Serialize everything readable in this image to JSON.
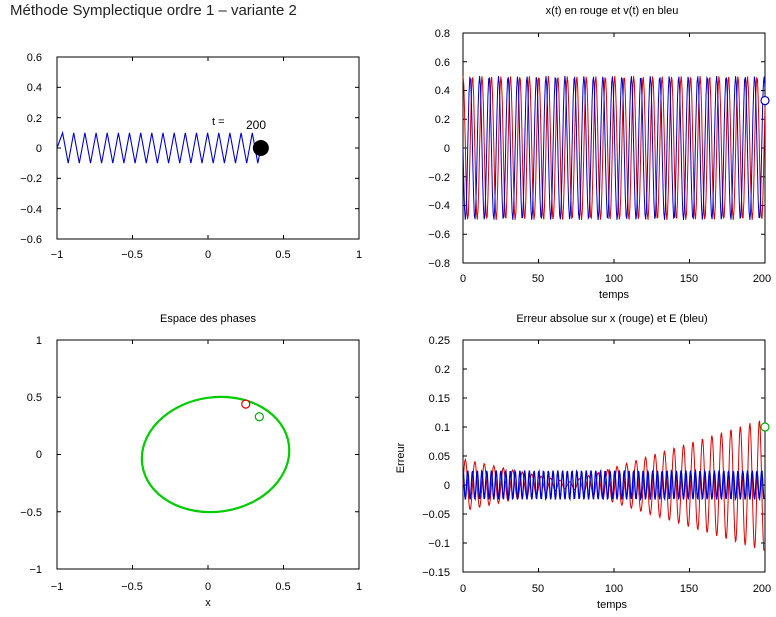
{
  "title": "Méthode Symplectique ordre 1 – variante 2",
  "chart_data": [
    {
      "id": "animation",
      "type": "line",
      "title": "",
      "xlabel": "",
      "ylabel": "",
      "xlim": [
        -1,
        1
      ],
      "ylim": [
        -0.6,
        0.6
      ],
      "xticks": [
        "−1",
        "−0.5",
        "0",
        "0.5",
        "1"
      ],
      "yticks": [
        "0.6",
        "0.4",
        "0.2",
        "0",
        "−0.2",
        "−0.4",
        "−0.6"
      ],
      "spring": {
        "x_start": -1,
        "x_end": 0.33,
        "amplitude": 0.1,
        "coils": 18,
        "color": "#0000cc"
      },
      "mass": {
        "x": 0.35,
        "y": 0,
        "color": "#000000"
      },
      "time_label": "t =",
      "time_value": "200"
    },
    {
      "id": "time-series",
      "type": "line",
      "title": "x(t) en rouge et v(t) en bleu",
      "xlabel": "temps",
      "ylabel": "",
      "xlim": [
        0,
        200
      ],
      "ylim": [
        -0.8,
        0.8
      ],
      "xticks": [
        "0",
        "50",
        "100",
        "150",
        "200"
      ],
      "yticks": [
        "0.8",
        "0.6",
        "0.4",
        "0.2",
        "0",
        "−0.2",
        "−0.4",
        "−0.6",
        "−0.8"
      ],
      "series": [
        {
          "color": "#dd0000",
          "amplitude": 0.5,
          "period": 6.28,
          "phase": 0
        },
        {
          "color": "#0000cc",
          "amplitude": 0.5,
          "period": 6.28,
          "phase": 1.57
        }
      ],
      "end_marker": {
        "x": 200,
        "y": 0.33,
        "color": "#0000cc"
      }
    },
    {
      "id": "phase-space",
      "type": "scatter",
      "title": "Espace des phases",
      "xlabel": "x",
      "ylabel": "",
      "xlim": [
        -1,
        1
      ],
      "ylim": [
        -1,
        1
      ],
      "xticks": [
        "−1",
        "−0.5",
        "0",
        "0.5",
        "1"
      ],
      "yticks": [
        "1",
        "0.5",
        "0",
        "−0.5",
        "−1"
      ],
      "ellipse": {
        "cx": 0.05,
        "cy": 0,
        "rx": 0.49,
        "ry": 0.5,
        "tilt_deg": -8,
        "color": "#00cc00"
      },
      "markers": [
        {
          "x": 0.25,
          "y": 0.44,
          "color": "#dd0000"
        },
        {
          "x": 0.34,
          "y": 0.33,
          "color": "#00aa00"
        }
      ]
    },
    {
      "id": "error",
      "type": "line",
      "title": "Erreur absolue sur x (rouge) et E (bleu)",
      "xlabel": "temps",
      "ylabel": "Erreur",
      "xlim": [
        0,
        200
      ],
      "ylim": [
        -0.15,
        0.25
      ],
      "xticks": [
        "0",
        "50",
        "100",
        "150",
        "200"
      ],
      "yticks": [
        "0.25",
        "0.2",
        "0.15",
        "0.1",
        "0.05",
        "0",
        "−0.05",
        "−0.1",
        "−0.15"
      ],
      "series": [
        {
          "color": "#dd0000",
          "kind": "beat",
          "amp_start": 0.045,
          "amp_min": 0.005,
          "amp_end": 0.115,
          "min_at": 70,
          "period": 6.28
        },
        {
          "color": "#0000cc",
          "kind": "steady",
          "amplitude": 0.025,
          "period": 3.14
        }
      ],
      "end_marker": {
        "x": 200,
        "y": 0.1,
        "color": "#00aa00"
      }
    }
  ]
}
